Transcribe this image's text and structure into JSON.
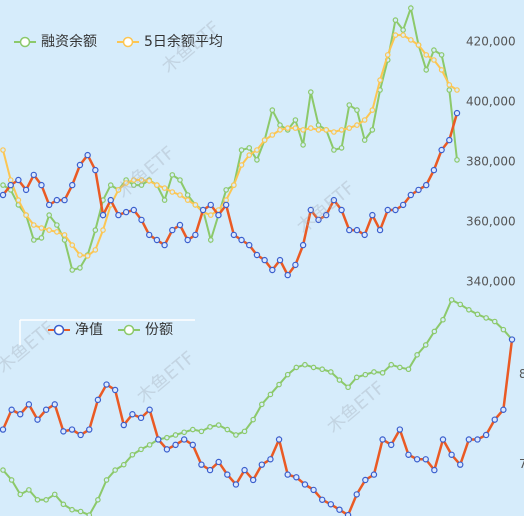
{
  "chart_data": [
    {
      "type": "line",
      "ylim": [
        334000,
        434000
      ],
      "yticks": [
        {
          "value": 340000,
          "label": "340,000"
        },
        {
          "value": 360000,
          "label": "360,000"
        },
        {
          "value": 380000,
          "label": "380,000"
        },
        {
          "value": 400000,
          "label": "400,000"
        },
        {
          "value": 420000,
          "label": "420,000"
        }
      ],
      "series": [
        {
          "name": "融资余额",
          "color": "#8cc96b",
          "values": [
            372300,
            370700,
            365700,
            362300,
            354000,
            354700,
            362300,
            359000,
            354000,
            344000,
            344700,
            349000,
            357300,
            367300,
            372300,
            370700,
            374000,
            372300,
            372300,
            374000,
            372300,
            367300,
            375700,
            374000,
            369000,
            365700,
            364000,
            354000,
            362300,
            370700,
            372300,
            384000,
            384700,
            380700,
            387300,
            397300,
            392300,
            390700,
            394000,
            385700,
            403300,
            392300,
            390700,
            384000,
            384700,
            399000,
            397300,
            387300,
            390700,
            404000,
            414000,
            427300,
            424000,
            431300,
            419000,
            410700,
            417300,
            415700,
            404000,
            380700
          ]
        },
        {
          "name": "5日余额平均",
          "color": "#fcc653",
          "values": [
            384000,
            374000,
            367300,
            362300,
            359000,
            358000,
            357300,
            356700,
            355700,
            352300,
            349000,
            348700,
            350700,
            357300,
            365700,
            370700,
            373000,
            374000,
            374000,
            373700,
            372300,
            371300,
            370000,
            369000,
            367300,
            365700,
            363300,
            362300,
            364000,
            367300,
            372300,
            379000,
            382300,
            384000,
            387300,
            389000,
            390700,
            391300,
            391300,
            390700,
            391300,
            390700,
            390700,
            390000,
            390700,
            391300,
            392300,
            394000,
            397300,
            407300,
            415700,
            422300,
            422300,
            420700,
            419000,
            415700,
            414000,
            410700,
            405700,
            404000
          ]
        },
        {
          "color": "#ea5a24",
          "values": [
            369000,
            372300,
            374000,
            370700,
            375700,
            372300,
            365700,
            367300,
            367300,
            372300,
            379000,
            382300,
            377300,
            362300,
            367300,
            362300,
            363300,
            364000,
            360700,
            355700,
            354000,
            352300,
            357300,
            359000,
            354000,
            355700,
            364000,
            365700,
            362300,
            365700,
            355700,
            354000,
            352300,
            349000,
            347300,
            344000,
            347300,
            342300,
            345700,
            352300,
            364000,
            360700,
            362300,
            367300,
            364000,
            357300,
            357300,
            355700,
            362300,
            357300,
            364000,
            364000,
            365700,
            369000,
            370700,
            372300,
            377300,
            384000,
            387300,
            396300
          ]
        }
      ]
    },
    {
      "type": "line",
      "ylim": [
        6.43,
        8.94
      ],
      "yticks": [
        7,
        8
      ],
      "series": [
        {
          "name": "净值",
          "color": "#ea5a24",
          "values": [
            7.39,
            7.61,
            7.56,
            7.67,
            7.5,
            7.61,
            7.67,
            7.37,
            7.39,
            7.33,
            7.39,
            7.72,
            7.89,
            7.83,
            7.44,
            7.56,
            7.52,
            7.61,
            7.28,
            7.17,
            7.22,
            7.28,
            7.22,
            7.0,
            6.94,
            7.03,
            6.89,
            6.78,
            6.94,
            6.83,
            7.0,
            7.06,
            7.28,
            6.89,
            6.86,
            6.78,
            6.72,
            6.61,
            6.56,
            6.5,
            6.44,
            6.67,
            6.83,
            6.89,
            7.28,
            7.22,
            7.39,
            7.11,
            7.06,
            7.06,
            6.94,
            7.28,
            7.11,
            7.0,
            7.28,
            7.28,
            7.33,
            7.5,
            7.61,
            8.39
          ]
        },
        {
          "name": "份额",
          "color": "#8cc96b",
          "values": [
            6.94,
            6.83,
            6.67,
            6.72,
            6.61,
            6.61,
            6.67,
            6.56,
            6.5,
            6.48,
            6.44,
            6.61,
            6.83,
            6.94,
            7.0,
            7.11,
            7.17,
            7.22,
            7.28,
            7.3,
            7.33,
            7.36,
            7.39,
            7.37,
            7.42,
            7.44,
            7.39,
            7.33,
            7.37,
            7.5,
            7.67,
            7.78,
            7.89,
            8.0,
            8.08,
            8.11,
            8.08,
            8.06,
            8.03,
            7.94,
            7.86,
            7.97,
            8.0,
            8.03,
            8.02,
            8.11,
            8.08,
            8.06,
            8.22,
            8.33,
            8.48,
            8.61,
            8.83,
            8.78,
            8.72,
            8.67,
            8.63,
            8.59,
            8.5,
            8.39
          ]
        }
      ]
    }
  ],
  "watermark": "木鱼ETF"
}
